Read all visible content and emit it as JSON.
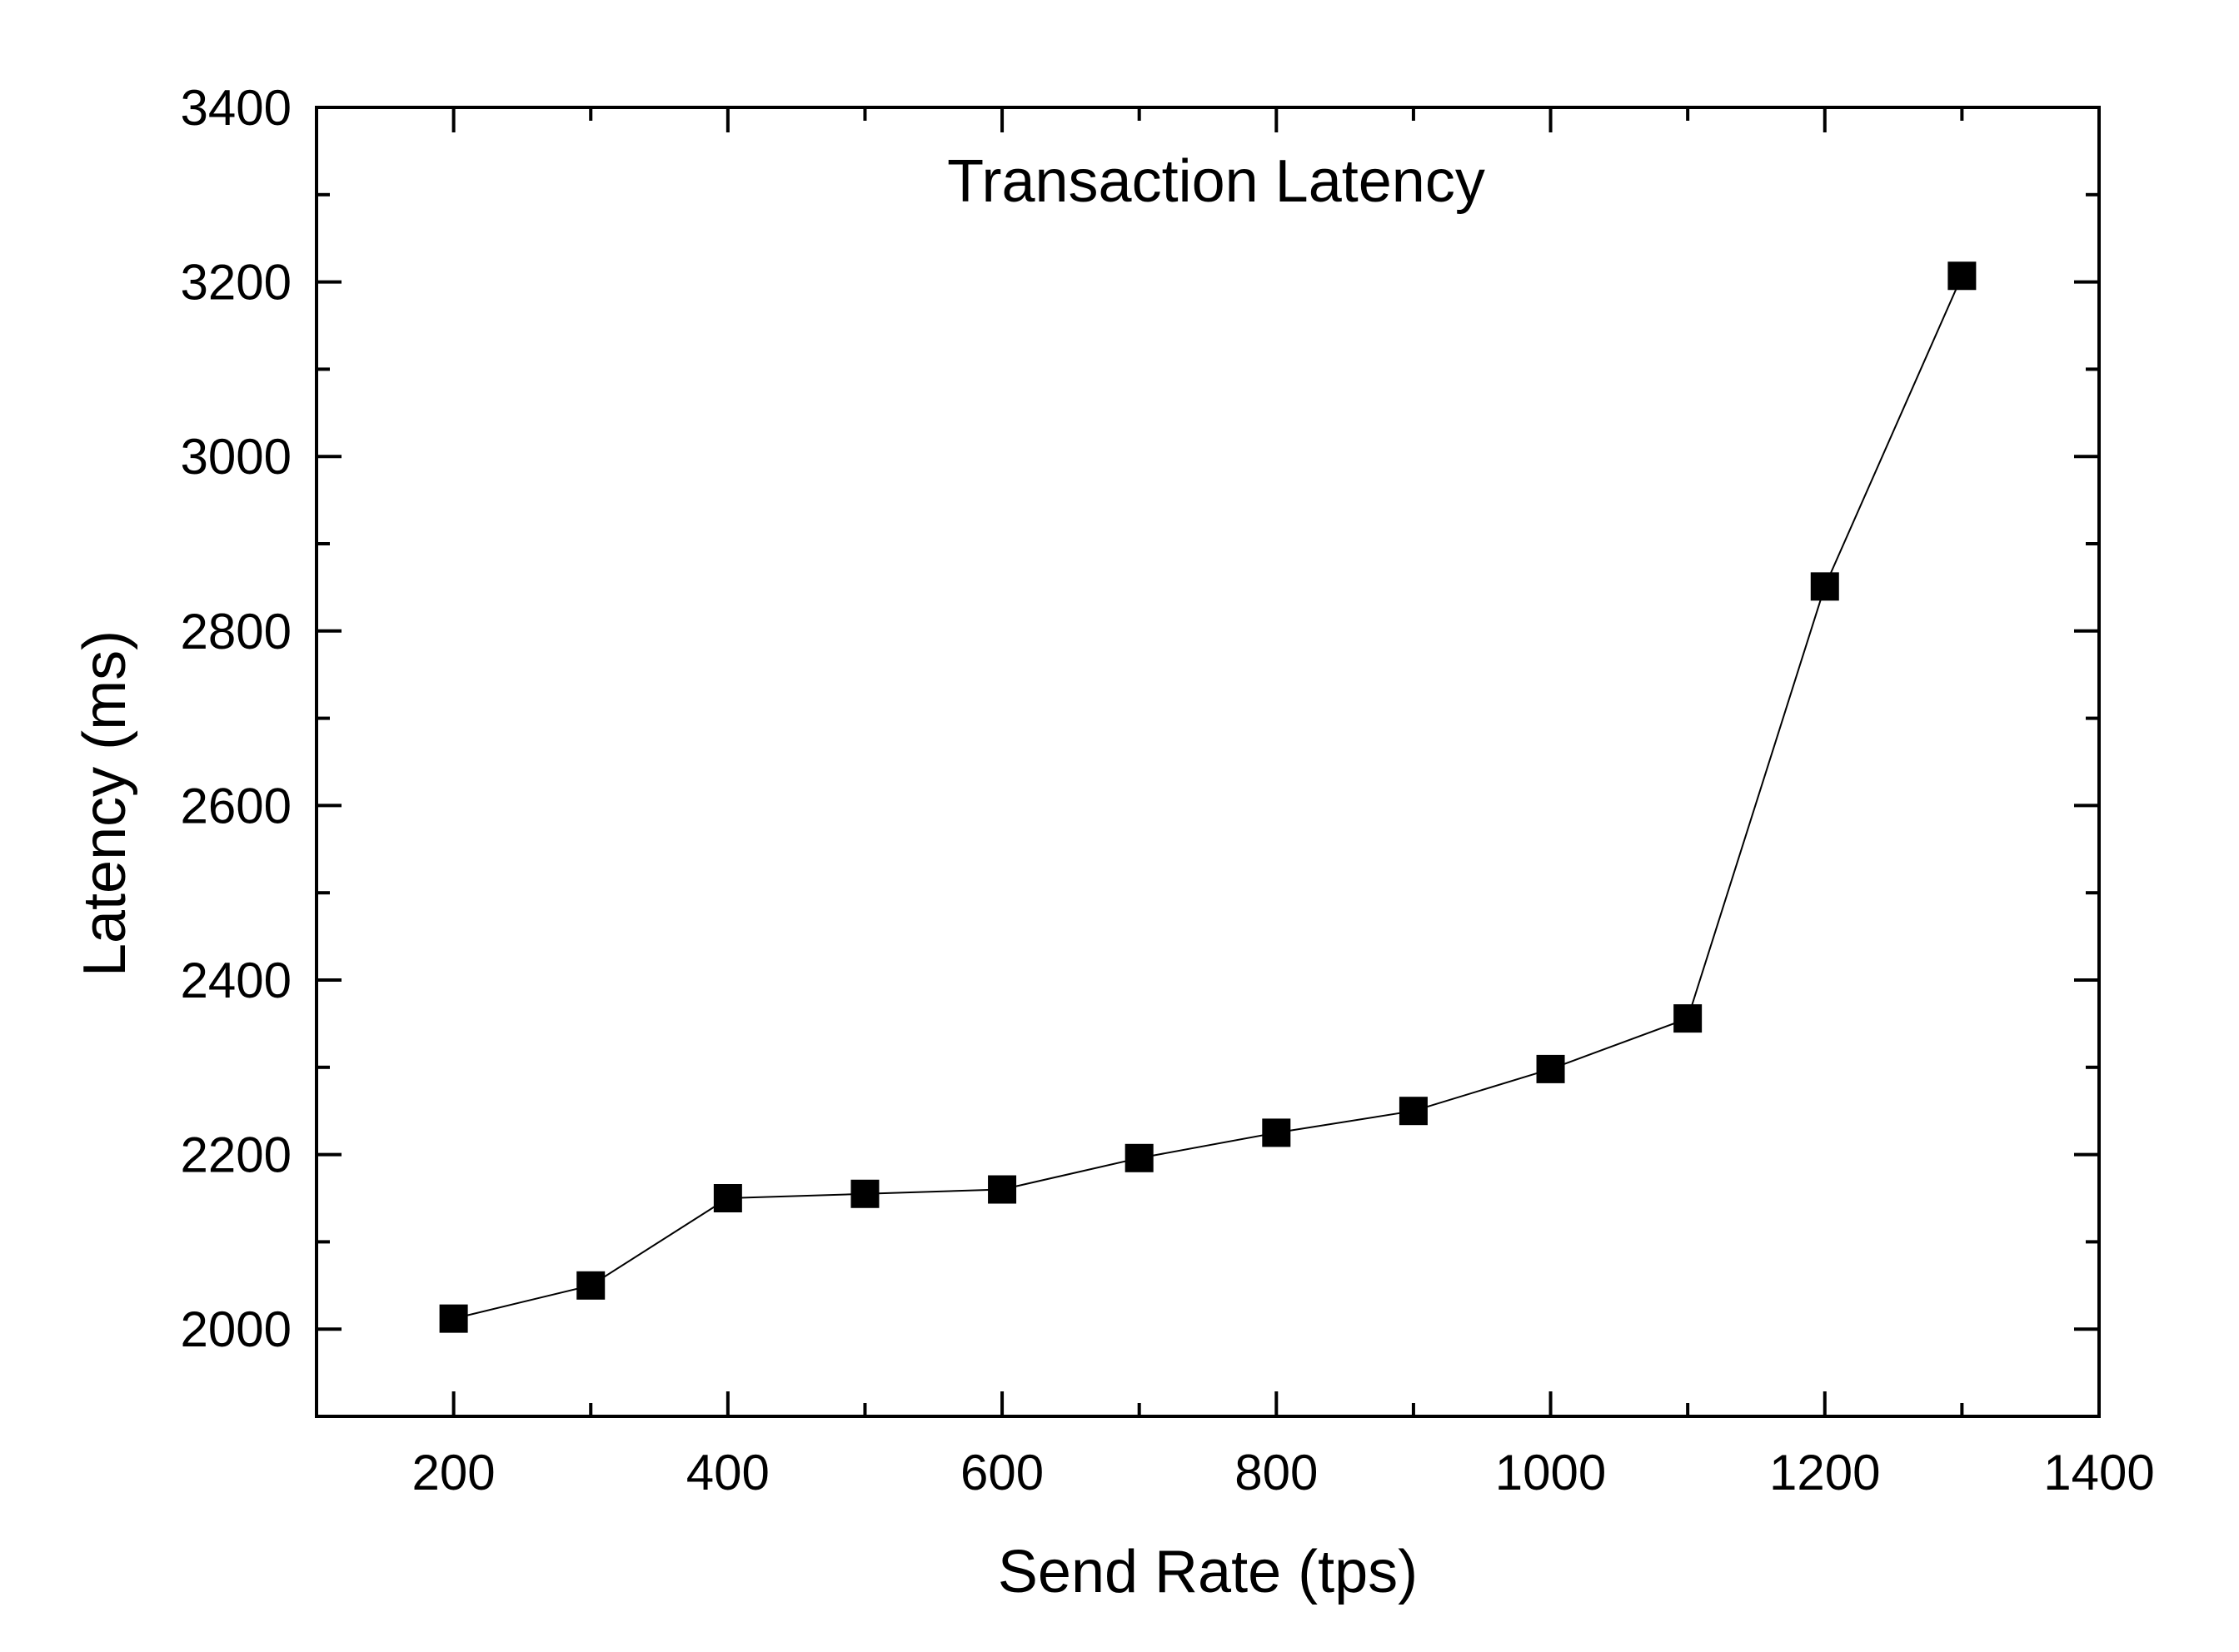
{
  "chart_data": {
    "type": "line",
    "title": "Transaction Latency",
    "xlabel": "Send Rate (tps)",
    "ylabel": "Latency (ms)",
    "xlim": [
      100,
      1400
    ],
    "ylim": [
      1900,
      3400
    ],
    "xticks": [
      200,
      400,
      600,
      800,
      1000,
      1200,
      1400
    ],
    "yticks": [
      2000,
      2200,
      2400,
      2600,
      2800,
      3000,
      3200,
      3400
    ],
    "xtick_labels": [
      "200",
      "400",
      "600",
      "800",
      "1000",
      "1200",
      "1400"
    ],
    "ytick_labels": [
      "2000",
      "2200",
      "2400",
      "2600",
      "2800",
      "3000",
      "3200",
      "3400"
    ],
    "grid": false,
    "legend": "none",
    "marker": "square",
    "color": "#000000",
    "series": [
      {
        "name": "Transaction Latency",
        "x": [
          200,
          300,
          400,
          500,
          600,
          700,
          800,
          900,
          1000,
          1100,
          1200,
          1300
        ],
        "y": [
          2012,
          2050,
          2150,
          2155,
          2160,
          2196,
          2225,
          2250,
          2298,
          2356,
          2851,
          3207
        ]
      }
    ]
  }
}
